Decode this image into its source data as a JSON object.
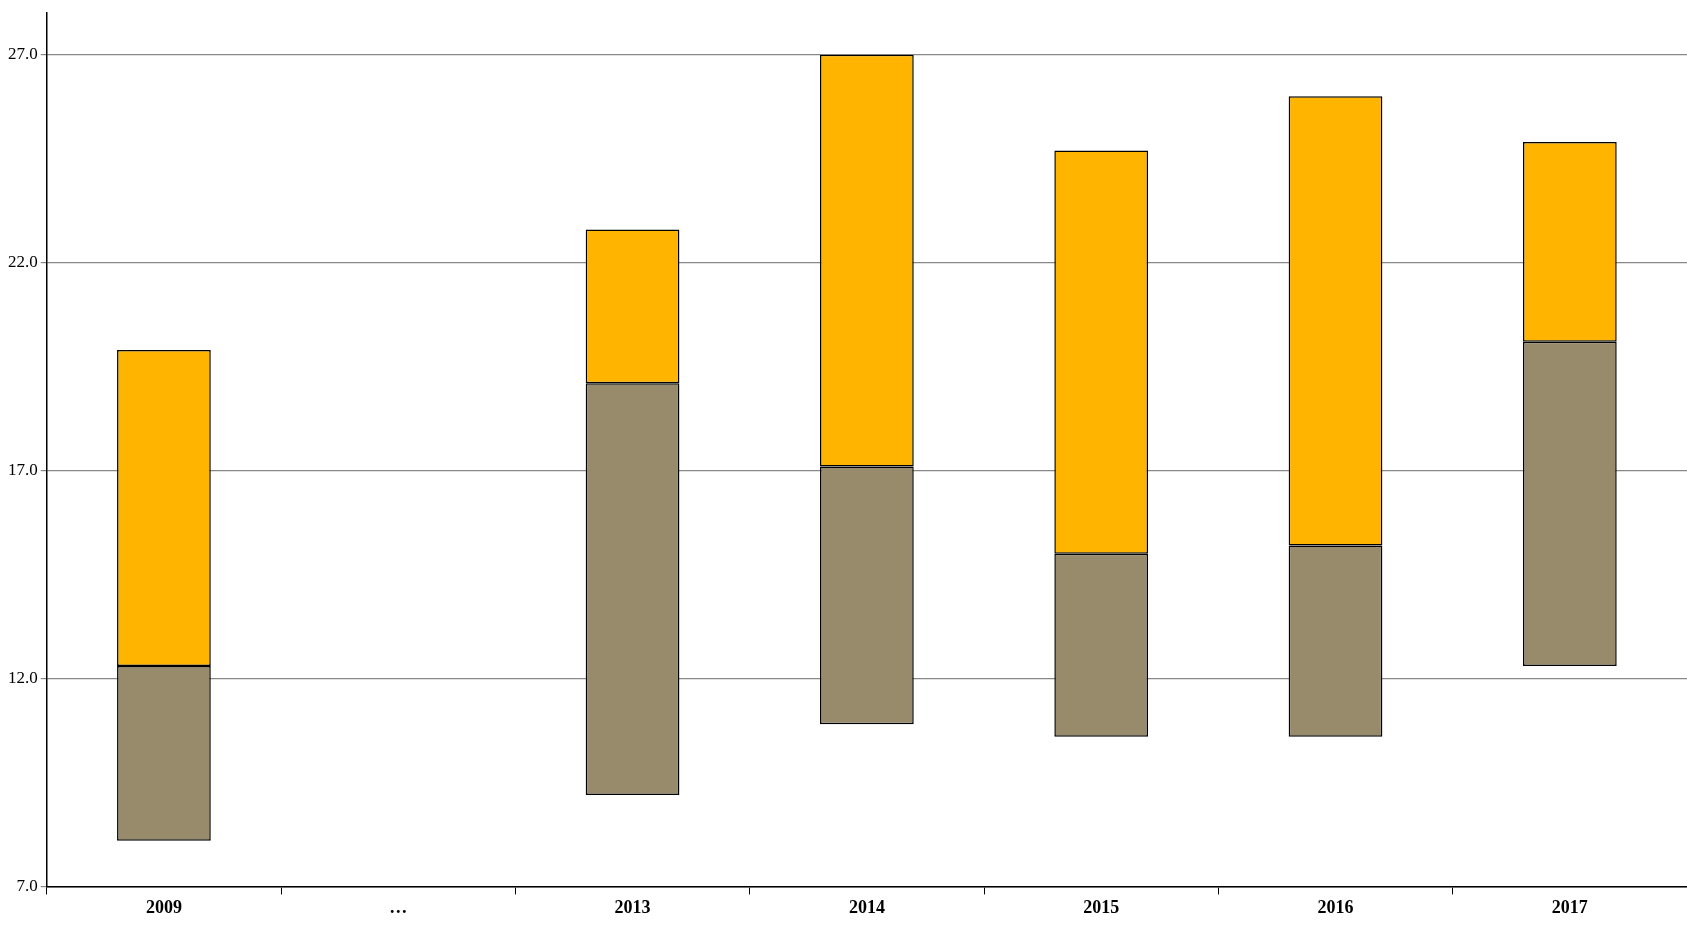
{
  "chart_data": {
    "type": "bar",
    "categories": [
      "2009",
      "…",
      "2013",
      "2014",
      "2015",
      "2016",
      "2017"
    ],
    "series": [
      {
        "color": "#978b6b",
        "base": [
          8.1,
          null,
          9.2,
          10.9,
          10.6,
          10.6,
          12.3
        ],
        "values": [
          4.2,
          null,
          9.9,
          6.2,
          4.4,
          4.6,
          7.8
        ]
      },
      {
        "color": "#ffb400",
        "base": [
          12.3,
          null,
          19.1,
          17.1,
          15.0,
          15.2,
          20.1
        ],
        "values": [
          7.6,
          null,
          3.7,
          9.9,
          9.7,
          10.8,
          4.8
        ]
      }
    ],
    "ylim": [
      7,
      28
    ],
    "yticks": [
      {
        "value": 7,
        "label": "7.0"
      },
      {
        "value": 12,
        "label": "12.0"
      },
      {
        "value": 17,
        "label": "17.0"
      },
      {
        "value": 22,
        "label": "22.0"
      },
      {
        "value": 27,
        "label": "27.0"
      }
    ],
    "grid": "y",
    "legend": false
  }
}
